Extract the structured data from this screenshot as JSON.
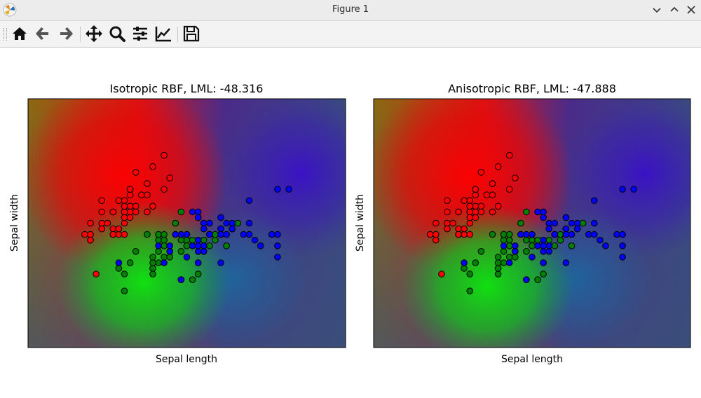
{
  "window": {
    "title": "Figure 1"
  },
  "toolbar": {
    "buttons": [
      {
        "name": "home-button",
        "icon": "home-icon"
      },
      {
        "name": "back-button",
        "icon": "arrow-left-icon"
      },
      {
        "name": "forward-button",
        "icon": "arrow-right-icon"
      },
      {
        "name": "pan-button",
        "icon": "move-icon"
      },
      {
        "name": "zoom-button",
        "icon": "magnifier-icon"
      },
      {
        "name": "configure-subplots-button",
        "icon": "sliders-icon"
      },
      {
        "name": "edit-axis-button",
        "icon": "line-chart-icon"
      },
      {
        "name": "save-button",
        "icon": "floppy-disk-icon"
      }
    ]
  },
  "chart_data": [
    {
      "type": "scatter",
      "title": "Isotropic RBF, LML: -48.316",
      "xlabel": "Sepal length",
      "ylabel": "Sepal width",
      "xlim": [
        3.3,
        8.9
      ],
      "ylim": [
        1.0,
        5.4
      ],
      "ticks_visible": false,
      "background": "predicted class probability map (red / green / blue)",
      "series": [
        {
          "color": "#ff0000",
          "points": [
            [
              5.1,
              3.5
            ],
            [
              4.9,
              3.0
            ],
            [
              4.7,
              3.2
            ],
            [
              4.6,
              3.1
            ],
            [
              5.0,
              3.6
            ],
            [
              5.4,
              3.9
            ],
            [
              4.6,
              3.4
            ],
            [
              5.0,
              3.4
            ],
            [
              4.4,
              2.9
            ],
            [
              4.9,
              3.1
            ],
            [
              5.4,
              3.7
            ],
            [
              4.8,
              3.4
            ],
            [
              4.8,
              3.0
            ],
            [
              4.3,
              3.0
            ],
            [
              5.8,
              4.0
            ],
            [
              5.7,
              4.4
            ],
            [
              5.4,
              3.9
            ],
            [
              5.1,
              3.5
            ],
            [
              5.7,
              3.8
            ],
            [
              5.1,
              3.8
            ],
            [
              5.4,
              3.4
            ],
            [
              5.1,
              3.7
            ],
            [
              4.6,
              3.6
            ],
            [
              5.1,
              3.3
            ],
            [
              4.8,
              3.4
            ],
            [
              5.0,
              3.0
            ],
            [
              5.0,
              3.4
            ],
            [
              5.2,
              3.5
            ],
            [
              5.2,
              3.4
            ],
            [
              4.7,
              3.2
            ],
            [
              4.8,
              3.1
            ],
            [
              5.4,
              3.4
            ],
            [
              5.2,
              4.1
            ],
            [
              5.5,
              4.2
            ],
            [
              4.9,
              3.1
            ],
            [
              5.0,
              3.2
            ],
            [
              5.5,
              3.5
            ],
            [
              4.9,
              3.6
            ],
            [
              4.4,
              3.0
            ],
            [
              5.1,
              3.4
            ],
            [
              5.0,
              3.5
            ],
            [
              4.5,
              2.3
            ],
            [
              4.4,
              3.2
            ],
            [
              5.0,
              3.5
            ],
            [
              5.1,
              3.8
            ],
            [
              4.8,
              3.0
            ],
            [
              5.1,
              3.8
            ],
            [
              4.6,
              3.2
            ],
            [
              5.3,
              3.7
            ],
            [
              5.0,
              3.3
            ]
          ]
        },
        {
          "color": "#008000",
          "points": [
            [
              7.0,
              3.2
            ],
            [
              6.4,
              3.2
            ],
            [
              6.9,
              3.1
            ],
            [
              5.5,
              2.3
            ],
            [
              6.5,
              2.8
            ],
            [
              5.7,
              2.8
            ],
            [
              6.3,
              3.3
            ],
            [
              4.9,
              2.4
            ],
            [
              6.6,
              2.9
            ],
            [
              5.2,
              2.7
            ],
            [
              5.0,
              2.0
            ],
            [
              5.9,
              3.0
            ],
            [
              6.0,
              2.2
            ],
            [
              6.1,
              2.9
            ],
            [
              5.6,
              2.9
            ],
            [
              6.7,
              3.1
            ],
            [
              5.6,
              3.0
            ],
            [
              5.8,
              2.7
            ],
            [
              6.2,
              2.2
            ],
            [
              5.6,
              2.5
            ],
            [
              5.9,
              3.2
            ],
            [
              6.1,
              2.8
            ],
            [
              6.3,
              2.5
            ],
            [
              6.1,
              2.8
            ],
            [
              6.4,
              2.9
            ],
            [
              6.6,
              3.0
            ],
            [
              6.8,
              2.8
            ],
            [
              6.7,
              3.0
            ],
            [
              6.0,
              2.9
            ],
            [
              5.7,
              2.6
            ],
            [
              5.5,
              2.4
            ],
            [
              5.5,
              2.4
            ],
            [
              5.8,
              2.7
            ],
            [
              6.0,
              2.7
            ],
            [
              5.4,
              3.0
            ],
            [
              6.0,
              3.4
            ],
            [
              6.7,
              3.1
            ],
            [
              6.3,
              2.3
            ],
            [
              5.6,
              3.0
            ],
            [
              5.5,
              2.5
            ],
            [
              5.5,
              2.6
            ],
            [
              6.1,
              3.0
            ],
            [
              5.8,
              2.6
            ],
            [
              5.0,
              2.3
            ],
            [
              5.6,
              2.7
            ],
            [
              5.7,
              3.0
            ],
            [
              5.7,
              2.9
            ],
            [
              6.2,
              2.9
            ],
            [
              5.1,
              2.5
            ],
            [
              5.7,
              2.8
            ]
          ]
        },
        {
          "color": "#0000ff",
          "points": [
            [
              6.3,
              3.3
            ],
            [
              5.8,
              2.7
            ],
            [
              7.1,
              3.0
            ],
            [
              6.3,
              2.9
            ],
            [
              6.5,
              3.0
            ],
            [
              7.6,
              3.0
            ],
            [
              4.9,
              2.5
            ],
            [
              7.3,
              2.9
            ],
            [
              6.7,
              2.5
            ],
            [
              7.2,
              3.6
            ],
            [
              6.5,
              3.2
            ],
            [
              6.4,
              2.7
            ],
            [
              6.8,
              3.0
            ],
            [
              5.7,
              2.5
            ],
            [
              5.8,
              2.8
            ],
            [
              6.4,
              3.2
            ],
            [
              6.5,
              3.0
            ],
            [
              7.7,
              3.8
            ],
            [
              7.7,
              2.6
            ],
            [
              6.0,
              2.2
            ],
            [
              6.9,
              3.2
            ],
            [
              5.6,
              2.8
            ],
            [
              7.7,
              2.8
            ],
            [
              6.3,
              2.7
            ],
            [
              6.7,
              3.3
            ],
            [
              7.2,
              3.2
            ],
            [
              6.2,
              2.8
            ],
            [
              6.1,
              3.0
            ],
            [
              6.4,
              2.8
            ],
            [
              7.2,
              3.0
            ],
            [
              7.4,
              2.8
            ],
            [
              7.9,
              3.8
            ],
            [
              6.4,
              2.8
            ],
            [
              6.3,
              2.8
            ],
            [
              6.1,
              2.6
            ],
            [
              7.7,
              3.0
            ],
            [
              6.3,
              3.4
            ],
            [
              6.4,
              3.1
            ],
            [
              6.0,
              3.0
            ],
            [
              6.9,
              3.1
            ],
            [
              6.7,
              3.1
            ],
            [
              6.9,
              3.1
            ],
            [
              5.8,
              2.7
            ],
            [
              6.8,
              3.2
            ],
            [
              6.7,
              3.3
            ],
            [
              6.7,
              3.0
            ],
            [
              6.3,
              2.5
            ],
            [
              6.5,
              3.0
            ],
            [
              6.2,
              3.4
            ],
            [
              5.9,
              3.0
            ]
          ]
        }
      ]
    },
    {
      "type": "scatter",
      "title": "Anisotropic RBF, LML: -47.888",
      "xlabel": "Sepal length",
      "ylabel": "Sepal width",
      "xlim": [
        3.3,
        8.9
      ],
      "ylim": [
        1.0,
        5.4
      ],
      "ticks_visible": false,
      "background": "predicted class probability map (red / green / blue)",
      "series": "same points as first plot"
    }
  ]
}
